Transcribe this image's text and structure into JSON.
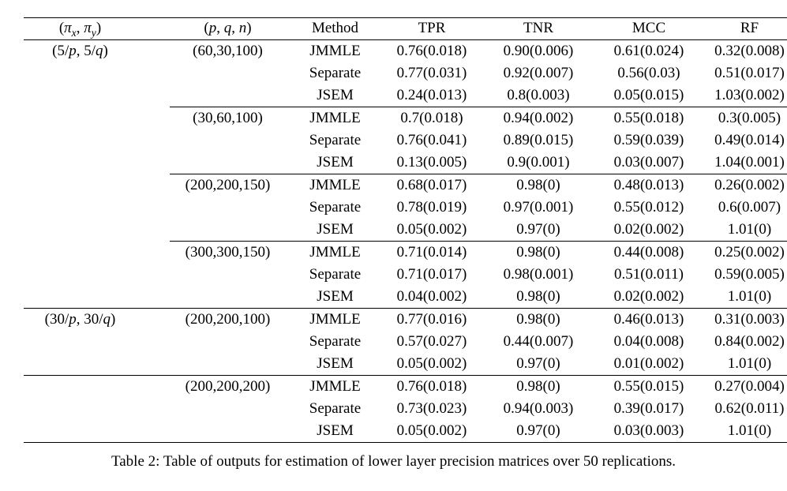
{
  "caption": "Table 2: Table of outputs for estimation of lower layer precision matrices over 50 replications.",
  "table": {
    "headers": [
      "(π_x, π_y)",
      "(p, q, n)",
      "Method",
      "TPR",
      "TNR",
      "MCC",
      "RF"
    ],
    "groups": [
      {
        "pi": "(5/p, 5/q)",
        "blocks": [
          {
            "pqn": "(60,30,100)",
            "rule": "none",
            "rows": [
              [
                "JMMLE",
                "0.76(0.018)",
                "0.90(0.006)",
                "0.61(0.024)",
                "0.32(0.008)"
              ],
              [
                "Separate",
                "0.77(0.031)",
                "0.92(0.007)",
                "0.56(0.03)",
                "0.51(0.017)"
              ],
              [
                "JSEM",
                "0.24(0.013)",
                "0.8(0.003)",
                "0.05(0.015)",
                "1.03(0.002)"
              ]
            ]
          },
          {
            "pqn": "(30,60,100)",
            "rule": "partial",
            "rows": [
              [
                "JMMLE",
                "0.7(0.018)",
                "0.94(0.002)",
                "0.55(0.018)",
                "0.3(0.005)"
              ],
              [
                "Separate",
                "0.76(0.041)",
                "0.89(0.015)",
                "0.59(0.039)",
                "0.49(0.014)"
              ],
              [
                "JSEM",
                "0.13(0.005)",
                "0.9(0.001)",
                "0.03(0.007)",
                "1.04(0.001)"
              ]
            ]
          },
          {
            "pqn": "(200,200,150)",
            "rule": "partial",
            "rows": [
              [
                "JMMLE",
                "0.68(0.017)",
                "0.98(0)",
                "0.48(0.013)",
                "0.26(0.002)"
              ],
              [
                "Separate",
                "0.78(0.019)",
                "0.97(0.001)",
                "0.55(0.012)",
                "0.6(0.007)"
              ],
              [
                "JSEM",
                "0.05(0.002)",
                "0.97(0)",
                "0.02(0.002)",
                "1.01(0)"
              ]
            ]
          },
          {
            "pqn": "(300,300,150)",
            "rule": "partial",
            "rows": [
              [
                "JMMLE",
                "0.71(0.014)",
                "0.98(0)",
                "0.44(0.008)",
                "0.25(0.002)"
              ],
              [
                "Separate",
                "0.71(0.017)",
                "0.98(0.001)",
                "0.51(0.011)",
                "0.59(0.005)"
              ],
              [
                "JSEM",
                "0.04(0.002)",
                "0.98(0)",
                "0.02(0.002)",
                "1.01(0)"
              ]
            ]
          }
        ]
      },
      {
        "pi": "(30/p, 30/q)",
        "blocks": [
          {
            "pqn": "(200,200,100)",
            "rule": "full",
            "rows": [
              [
                "JMMLE",
                "0.77(0.016)",
                "0.98(0)",
                "0.46(0.013)",
                "0.31(0.003)"
              ],
              [
                "Separate",
                "0.57(0.027)",
                "0.44(0.007)",
                "0.04(0.008)",
                "0.84(0.002)"
              ],
              [
                "JSEM",
                "0.05(0.002)",
                "0.97(0)",
                "0.01(0.002)",
                "1.01(0)"
              ]
            ]
          },
          {
            "pqn": "(200,200,200)",
            "rule": "full",
            "rows": [
              [
                "JMMLE",
                "0.76(0.018)",
                "0.98(0)",
                "0.55(0.015)",
                "0.27(0.004)"
              ],
              [
                "Separate",
                "0.73(0.023)",
                "0.94(0.003)",
                "0.39(0.017)",
                "0.62(0.011)"
              ],
              [
                "JSEM",
                "0.05(0.002)",
                "0.97(0)",
                "0.03(0.003)",
                "1.01(0)"
              ]
            ]
          }
        ]
      }
    ]
  }
}
